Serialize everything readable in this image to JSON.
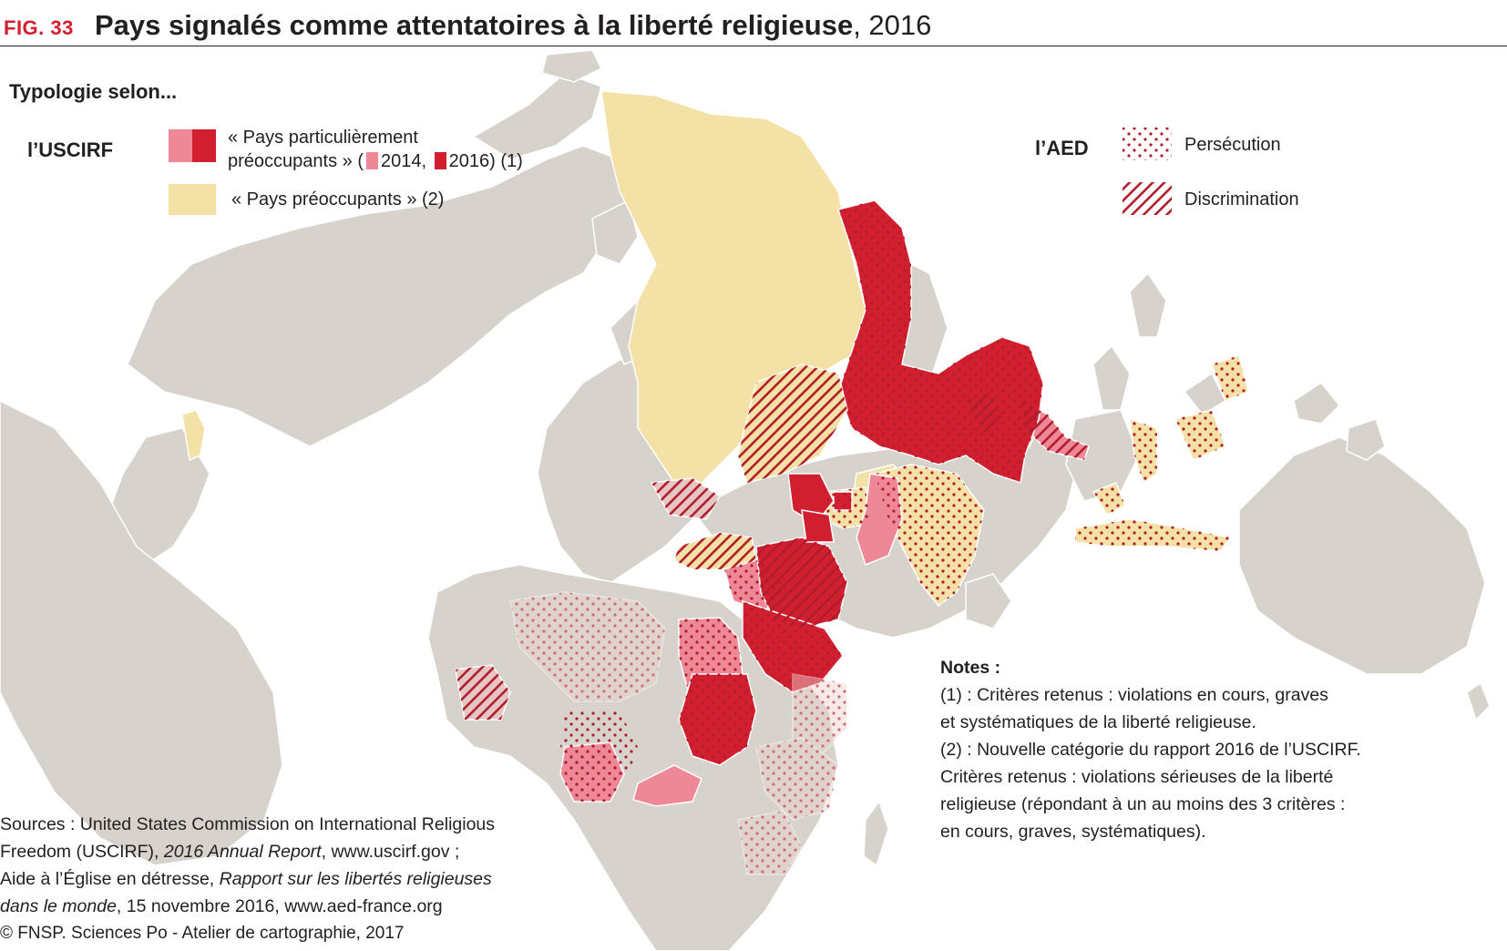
{
  "header": {
    "fig_label": "FIG. 33",
    "title_bold": "Pays signalés comme attentatoires à la liberté religieuse",
    "title_year": ", 2016"
  },
  "legend": {
    "intro": "Typologie selon...",
    "uscirf_label": "l’USCIRF",
    "cpc_line1": "« Pays particulièrement",
    "cpc_line2_a": "préoccupants » (",
    "cpc_2014": "2014,",
    "cpc_2016": "2016) (1)",
    "poc_label": "« Pays préoccupants » (2)",
    "aed_label": "l’AED",
    "persecution_label": "Persécution",
    "discrimination_label": "Discrimination"
  },
  "notes": {
    "heading": "Notes :",
    "lines": [
      "(1) : Critères retenus : violations en cours, graves",
      "et systématiques de la liberté religieuse.",
      "(2) :  Nouvelle catégorie du rapport 2016 de l’USCIRF.",
      "Critères retenus : violations sérieuses de la liberté",
      "religieuse (répondant à un au moins des 3 critères :",
      "en cours, graves, systématiques)."
    ]
  },
  "sources": {
    "line1": "Sources : United States Commission on International Religious",
    "line2_a": "Freedom (USCIRF), ",
    "line2_i": "2016 Annual Report",
    "line2_b": ", www.uscirf.gov ;",
    "line3_a": "Aide à l’Église en détresse, ",
    "line3_i": "Rapport sur les libertés religieuses",
    "line4_i": "dans le monde",
    "line4_b": ", 15 novembre 2016, www.aed-france.org"
  },
  "credit": "© FNSP. Sciences Po - Atelier de cartographie, 2017",
  "colors": {
    "land": "#d7d2cb",
    "border": "#ffffff",
    "cpc_2014": "#ee8897",
    "cpc_2016": "#d21f30",
    "poc": "#f3e1a6",
    "pattern": "#b01d2b",
    "title_red": "#d21f30"
  }
}
